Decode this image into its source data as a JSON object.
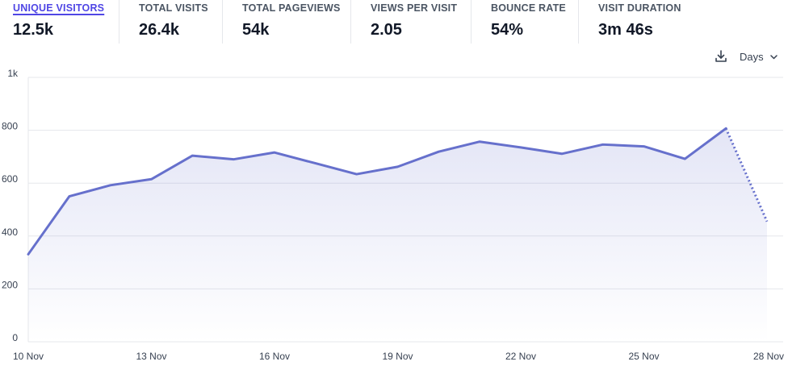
{
  "metrics": [
    {
      "label": "UNIQUE VISITORS",
      "value": "12.5k",
      "active": true
    },
    {
      "label": "TOTAL VISITS",
      "value": "26.4k",
      "active": false
    },
    {
      "label": "TOTAL PAGEVIEWS",
      "value": "54k",
      "active": false
    },
    {
      "label": "VIEWS PER VISIT",
      "value": "2.05",
      "active": false
    },
    {
      "label": "BOUNCE RATE",
      "value": "54%",
      "active": false
    },
    {
      "label": "VISIT DURATION",
      "value": "3m 46s",
      "active": false
    }
  ],
  "controls": {
    "download_icon": "download-icon",
    "interval_label": "Days",
    "interval_icon": "chevron-down-icon"
  },
  "colors": {
    "accent": "#4f46e5",
    "line": "#6670cc",
    "grid": "#e5e7eb"
  },
  "chart_data": {
    "type": "line",
    "title": "",
    "xlabel": "",
    "ylabel": "",
    "ylim": [
      0,
      1000
    ],
    "yticks": [
      0,
      200,
      400,
      600,
      800,
      1000
    ],
    "ytick_labels": [
      "0",
      "200",
      "400",
      "600",
      "800",
      "1k"
    ],
    "xtick_labels": [
      {
        "index": 0,
        "label": "10 Nov"
      },
      {
        "index": 3,
        "label": "13 Nov"
      },
      {
        "index": 6,
        "label": "16 Nov"
      },
      {
        "index": 9,
        "label": "19 Nov"
      },
      {
        "index": 12,
        "label": "22 Nov"
      },
      {
        "index": 15,
        "label": "25 Nov"
      },
      {
        "index": 18,
        "label": "28 Nov"
      }
    ],
    "x": [
      "10 Nov",
      "11 Nov",
      "12 Nov",
      "13 Nov",
      "14 Nov",
      "15 Nov",
      "16 Nov",
      "17 Nov",
      "18 Nov",
      "19 Nov",
      "20 Nov",
      "21 Nov",
      "22 Nov",
      "23 Nov",
      "24 Nov",
      "25 Nov",
      "26 Nov",
      "27 Nov",
      "28 Nov"
    ],
    "series": [
      {
        "values": [
          331,
          550,
          592,
          615,
          704,
          690,
          716,
          675,
          634,
          662,
          719,
          757,
          735,
          711,
          746,
          739,
          692,
          807,
          455
        ],
        "dashed_from_index": 17
      }
    ],
    "grid": true,
    "legend": "none"
  }
}
